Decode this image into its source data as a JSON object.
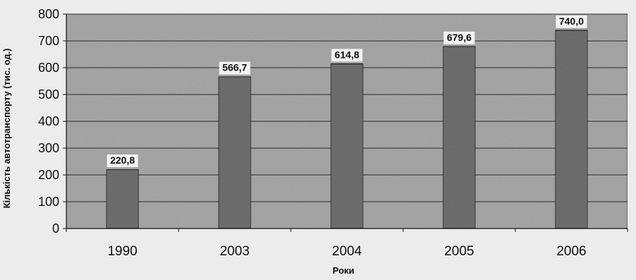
{
  "chart_data": {
    "type": "bar",
    "title": "",
    "xlabel": "Роки",
    "ylabel": "Кількість автотранспорту (тис. од.)",
    "categories": [
      "1990",
      "2003",
      "2004",
      "2005",
      "2006"
    ],
    "values": [
      220.8,
      566.7,
      614.8,
      679.6,
      740.0
    ],
    "data_labels": [
      "220,8",
      "566,7",
      "614,8",
      "679,6",
      "740,0"
    ],
    "ylim": [
      0,
      800
    ],
    "yticks": [
      0,
      100,
      200,
      300,
      400,
      500,
      600,
      700,
      800
    ],
    "grid": true,
    "legend": "none",
    "colors": {
      "plot_background": "#a8a8a8",
      "bar_fill": "#6f6f6f",
      "bar_stroke": "#1a1a1a",
      "gridline": "#2a2a2a",
      "label_box": "#f2f2f2"
    }
  }
}
